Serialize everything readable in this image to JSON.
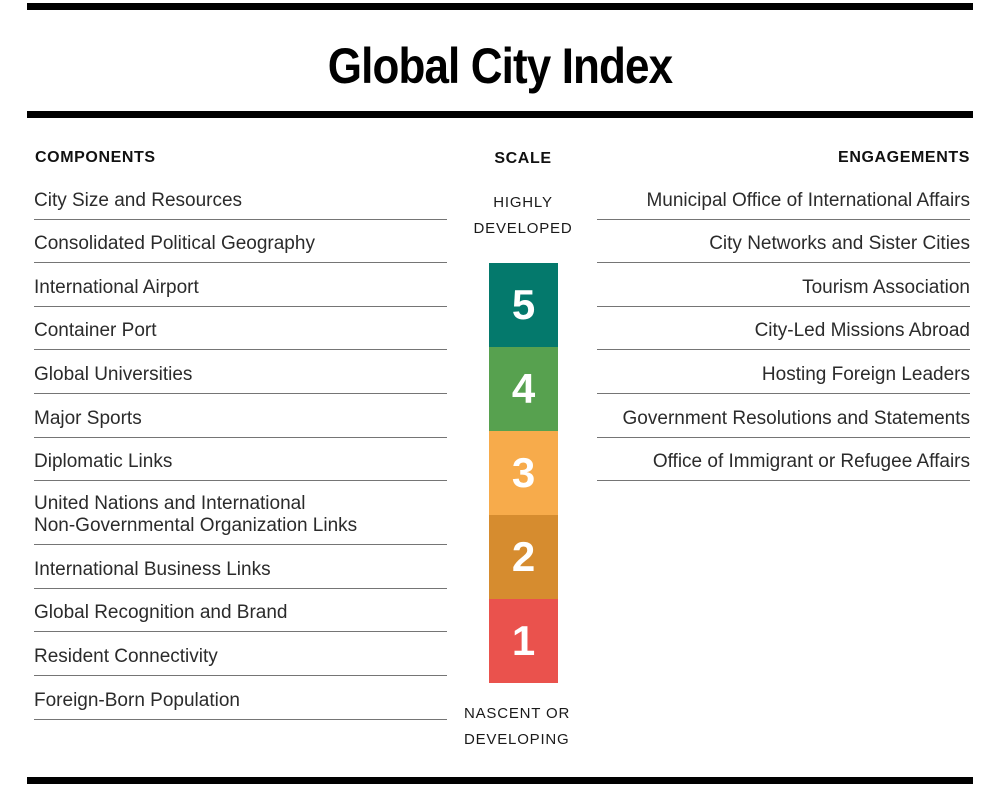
{
  "title": "Global City Index",
  "components": {
    "header": "COMPONENTS",
    "items": [
      "City Size and Resources",
      "Consolidated Political Geography",
      "International Airport",
      "Container Port",
      "Global Universities",
      "Major Sports",
      "Diplomatic Links",
      "United Nations and International\nNon-Governmental Organization Links",
      "International Business Links",
      "Global Recognition and Brand",
      "Resident Connectivity",
      "Foreign-Born Population"
    ]
  },
  "scale": {
    "header": "SCALE",
    "top_label": "HIGHLY\nDEVELOPED",
    "bottom_label": "NASCENT OR\nDEVELOPING",
    "levels": [
      {
        "value": "5",
        "color": "#04796C"
      },
      {
        "value": "4",
        "color": "#57A14F"
      },
      {
        "value": "3",
        "color": "#F7AB4B"
      },
      {
        "value": "2",
        "color": "#D68C2F"
      },
      {
        "value": "1",
        "color": "#EA524D"
      }
    ]
  },
  "engagements": {
    "header": "ENGAGEMENTS",
    "items": [
      "Municipal Office of International Affairs",
      "City Networks and Sister Cities",
      "Tourism Association",
      "City-Led Missions Abroad",
      "Hosting Foreign Leaders",
      "Government Resolutions and Statements",
      "Office of Immigrant or Refugee Affairs"
    ]
  }
}
